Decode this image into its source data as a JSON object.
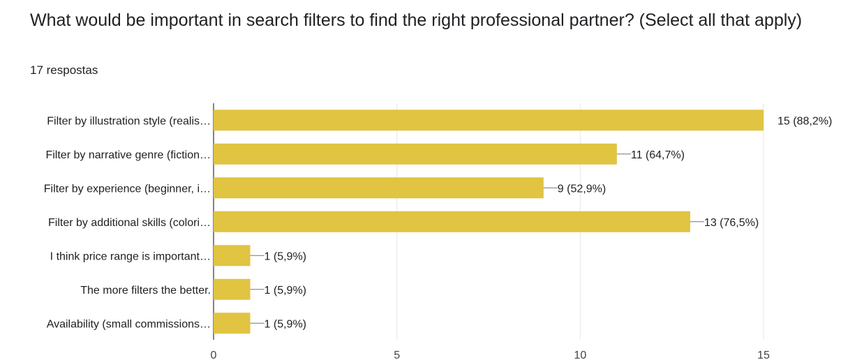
{
  "question": {
    "title": "What would be important in search filters to find the right professional partner? (Select all that apply)",
    "response_count": "17 respostas"
  },
  "colors": {
    "bar": "#e0c442",
    "grid": "#e6e6e6",
    "axis": "#333333",
    "connector": "#777777"
  },
  "chart_data": {
    "type": "bar",
    "orientation": "horizontal",
    "categories": [
      "Filter by illustration style (realis…",
      "Filter by narrative genre (fiction…",
      "Filter by experience (beginner, i…",
      "Filter by additional skills (colori…",
      "I think price range is important…",
      "The more filters the better.",
      "Availability (small commissions…"
    ],
    "values": [
      15,
      11,
      9,
      13,
      1,
      1,
      1
    ],
    "value_labels": [
      "15 (88,2%)",
      "11 (64,7%)",
      "9 (52,9%)",
      "13 (76,5%)",
      "1 (5,9%)",
      "1 (5,9%)",
      "1 (5,9%)"
    ],
    "xlim": [
      0,
      15
    ],
    "xticks": [
      0,
      5,
      10,
      15
    ],
    "grid": true,
    "legend": "none"
  }
}
